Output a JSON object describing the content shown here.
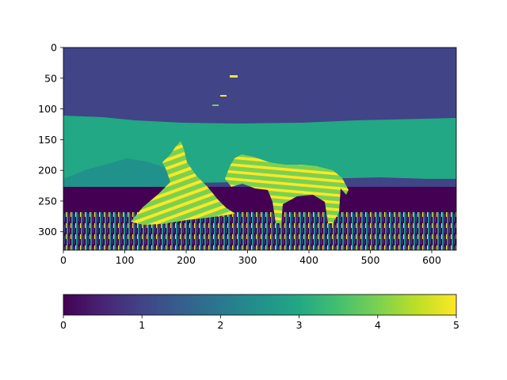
{
  "chart_data": {
    "type": "heatmap",
    "title": "",
    "xlabel": "",
    "ylabel": "",
    "image_size": [
      640,
      330
    ],
    "xlim": [
      0,
      640
    ],
    "ylim": [
      330,
      0
    ],
    "x_ticks": [
      0,
      100,
      200,
      300,
      400,
      500,
      600
    ],
    "y_ticks": [
      0,
      50,
      100,
      150,
      200,
      250,
      300
    ],
    "colormap": "viridis",
    "colorbar": {
      "orientation": "horizontal",
      "range": [
        0,
        5
      ],
      "ticks": [
        0,
        1,
        2,
        3,
        4,
        5
      ]
    },
    "cluster_colors": {
      "0": "#440154",
      "1": "#3b528b",
      "2": "#21918c",
      "3": "#22a884",
      "4": "#7ad151",
      "5": "#fde725"
    },
    "description_regions": {
      "sky_value": 1,
      "hills_value": 3,
      "mountain_value": 2,
      "ground_values": [
        0,
        2,
        5
      ],
      "zebra_values": [
        4,
        5
      ]
    }
  }
}
